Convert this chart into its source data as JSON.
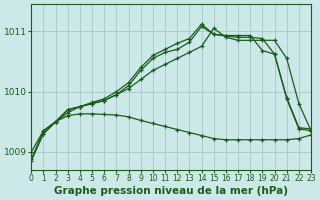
{
  "bg_color": "#cce8e8",
  "grid_color": "#aacccc",
  "line_color": "#1a5c1a",
  "title": "Graphe pression niveau de la mer (hPa)",
  "xmin": 0,
  "xmax": 23,
  "ymin": 1008.7,
  "ymax": 1011.45,
  "yticks": [
    1009,
    1010,
    1011
  ],
  "xticks": [
    0,
    1,
    2,
    3,
    4,
    5,
    6,
    7,
    8,
    9,
    10,
    11,
    12,
    13,
    14,
    15,
    16,
    17,
    18,
    19,
    20,
    21,
    22,
    23
  ],
  "series": [
    {
      "x": [
        0,
        1,
        2,
        3,
        4,
        5,
        6,
        7,
        8,
        9,
        10,
        11,
        12,
        13,
        14,
        15,
        16,
        17,
        18,
        19,
        20,
        21,
        22,
        23
      ],
      "y": [
        1008.85,
        1009.3,
        1009.5,
        1009.6,
        1009.63,
        1009.63,
        1009.62,
        1009.61,
        1009.58,
        1009.52,
        1009.47,
        1009.42,
        1009.37,
        1009.32,
        1009.27,
        1009.22,
        1009.2,
        1009.2,
        1009.2,
        1009.2,
        1009.2,
        1009.2,
        1009.22,
        1009.28
      ]
    },
    {
      "x": [
        1,
        2,
        3,
        4,
        5,
        6,
        7,
        8,
        9,
        10,
        11,
        12,
        13,
        14,
        15,
        16,
        17,
        18,
        19,
        20,
        21,
        22,
        23
      ],
      "y": [
        1009.3,
        1009.5,
        1009.7,
        1009.75,
        1009.8,
        1009.85,
        1009.95,
        1010.05,
        1010.2,
        1010.35,
        1010.45,
        1010.55,
        1010.65,
        1010.75,
        1011.05,
        1010.9,
        1010.85,
        1010.85,
        1010.85,
        1010.85,
        1010.55,
        1009.8,
        1009.35
      ]
    },
    {
      "x": [
        0,
        1,
        2,
        3,
        4,
        5,
        6,
        7,
        8,
        9,
        10,
        11,
        12,
        13,
        14,
        15,
        16,
        17,
        18,
        19,
        20,
        21,
        22,
        23
      ],
      "y": [
        1009.0,
        1009.35,
        1009.5,
        1009.65,
        1009.75,
        1009.8,
        1009.85,
        1009.95,
        1010.1,
        1010.35,
        1010.55,
        1010.65,
        1010.7,
        1010.82,
        1011.08,
        1010.95,
        1010.92,
        1010.9,
        1010.9,
        1010.88,
        1010.62,
        1009.88,
        1009.38,
        1009.35
      ]
    },
    {
      "x": [
        0,
        1,
        2,
        3,
        4,
        5,
        6,
        7,
        8,
        9,
        10,
        11,
        12,
        13,
        14,
        15,
        16,
        17,
        18,
        19,
        20,
        21,
        22,
        23
      ],
      "y": [
        1008.88,
        1009.35,
        1009.5,
        1009.7,
        1009.75,
        1009.82,
        1009.88,
        1010.0,
        1010.15,
        1010.4,
        1010.6,
        1010.7,
        1010.8,
        1010.88,
        1011.12,
        1010.95,
        1010.93,
        1010.93,
        1010.93,
        1010.68,
        1010.62,
        1009.9,
        1009.4,
        1009.38
      ]
    }
  ]
}
